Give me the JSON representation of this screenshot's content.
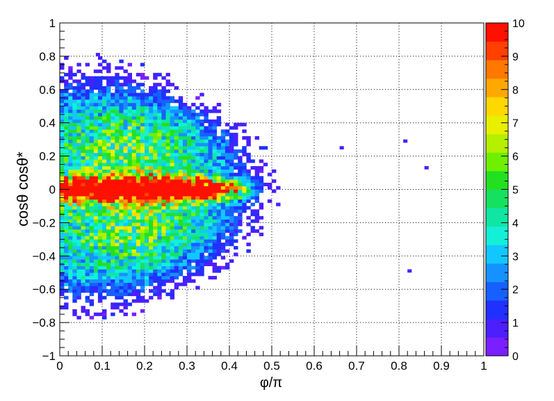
{
  "chart_data": {
    "type": "heatmap",
    "title": "",
    "xlabel": "φ/π",
    "ylabel": "cosθ cosθ*",
    "xlim": [
      0,
      1
    ],
    "ylim": [
      -1,
      1
    ],
    "x_ticks": [
      "0",
      "0.1",
      "0.2",
      "0.3",
      "0.4",
      "0.5",
      "0.6",
      "0.7",
      "0.8",
      "0.9",
      "1"
    ],
    "y_ticks": [
      "−1",
      "−0.8",
      "−0.6",
      "−0.4",
      "−0.2",
      "0",
      "0.2",
      "0.4",
      "0.6",
      "0.8",
      "1"
    ],
    "grid": true,
    "zlim": [
      0,
      10
    ],
    "z_ticks": [
      "0",
      "1",
      "2",
      "3",
      "4",
      "5",
      "6",
      "7",
      "8",
      "9",
      "10"
    ],
    "palette": [
      "#7a1fff",
      "#4b1fff",
      "#2030ff",
      "#1560ff",
      "#1592ff",
      "#12c7ff",
      "#14f0d8",
      "#10e6a4",
      "#16e060",
      "#22e020",
      "#6ef000",
      "#b4f000",
      "#e8f000",
      "#ffd800",
      "#ffa800",
      "#ff7800",
      "#ff4000",
      "#ff1000"
    ],
    "bins": {
      "nx": 100,
      "ny": 100
    },
    "profile_description_values": {
      "y_core_half_width": 0.06,
      "x_core_extent": 0.42,
      "x_full_extent": 0.6
    },
    "isolated_points": [
      {
        "x": 0.665,
        "y": 0.25,
        "z": 1
      },
      {
        "x": 0.815,
        "y": 0.29,
        "z": 1
      },
      {
        "x": 0.865,
        "y": 0.13,
        "z": 1
      },
      {
        "x": 0.825,
        "y": -0.49,
        "z": 1
      },
      {
        "x": 0.09,
        "y": 0.81,
        "z": 1
      }
    ]
  }
}
